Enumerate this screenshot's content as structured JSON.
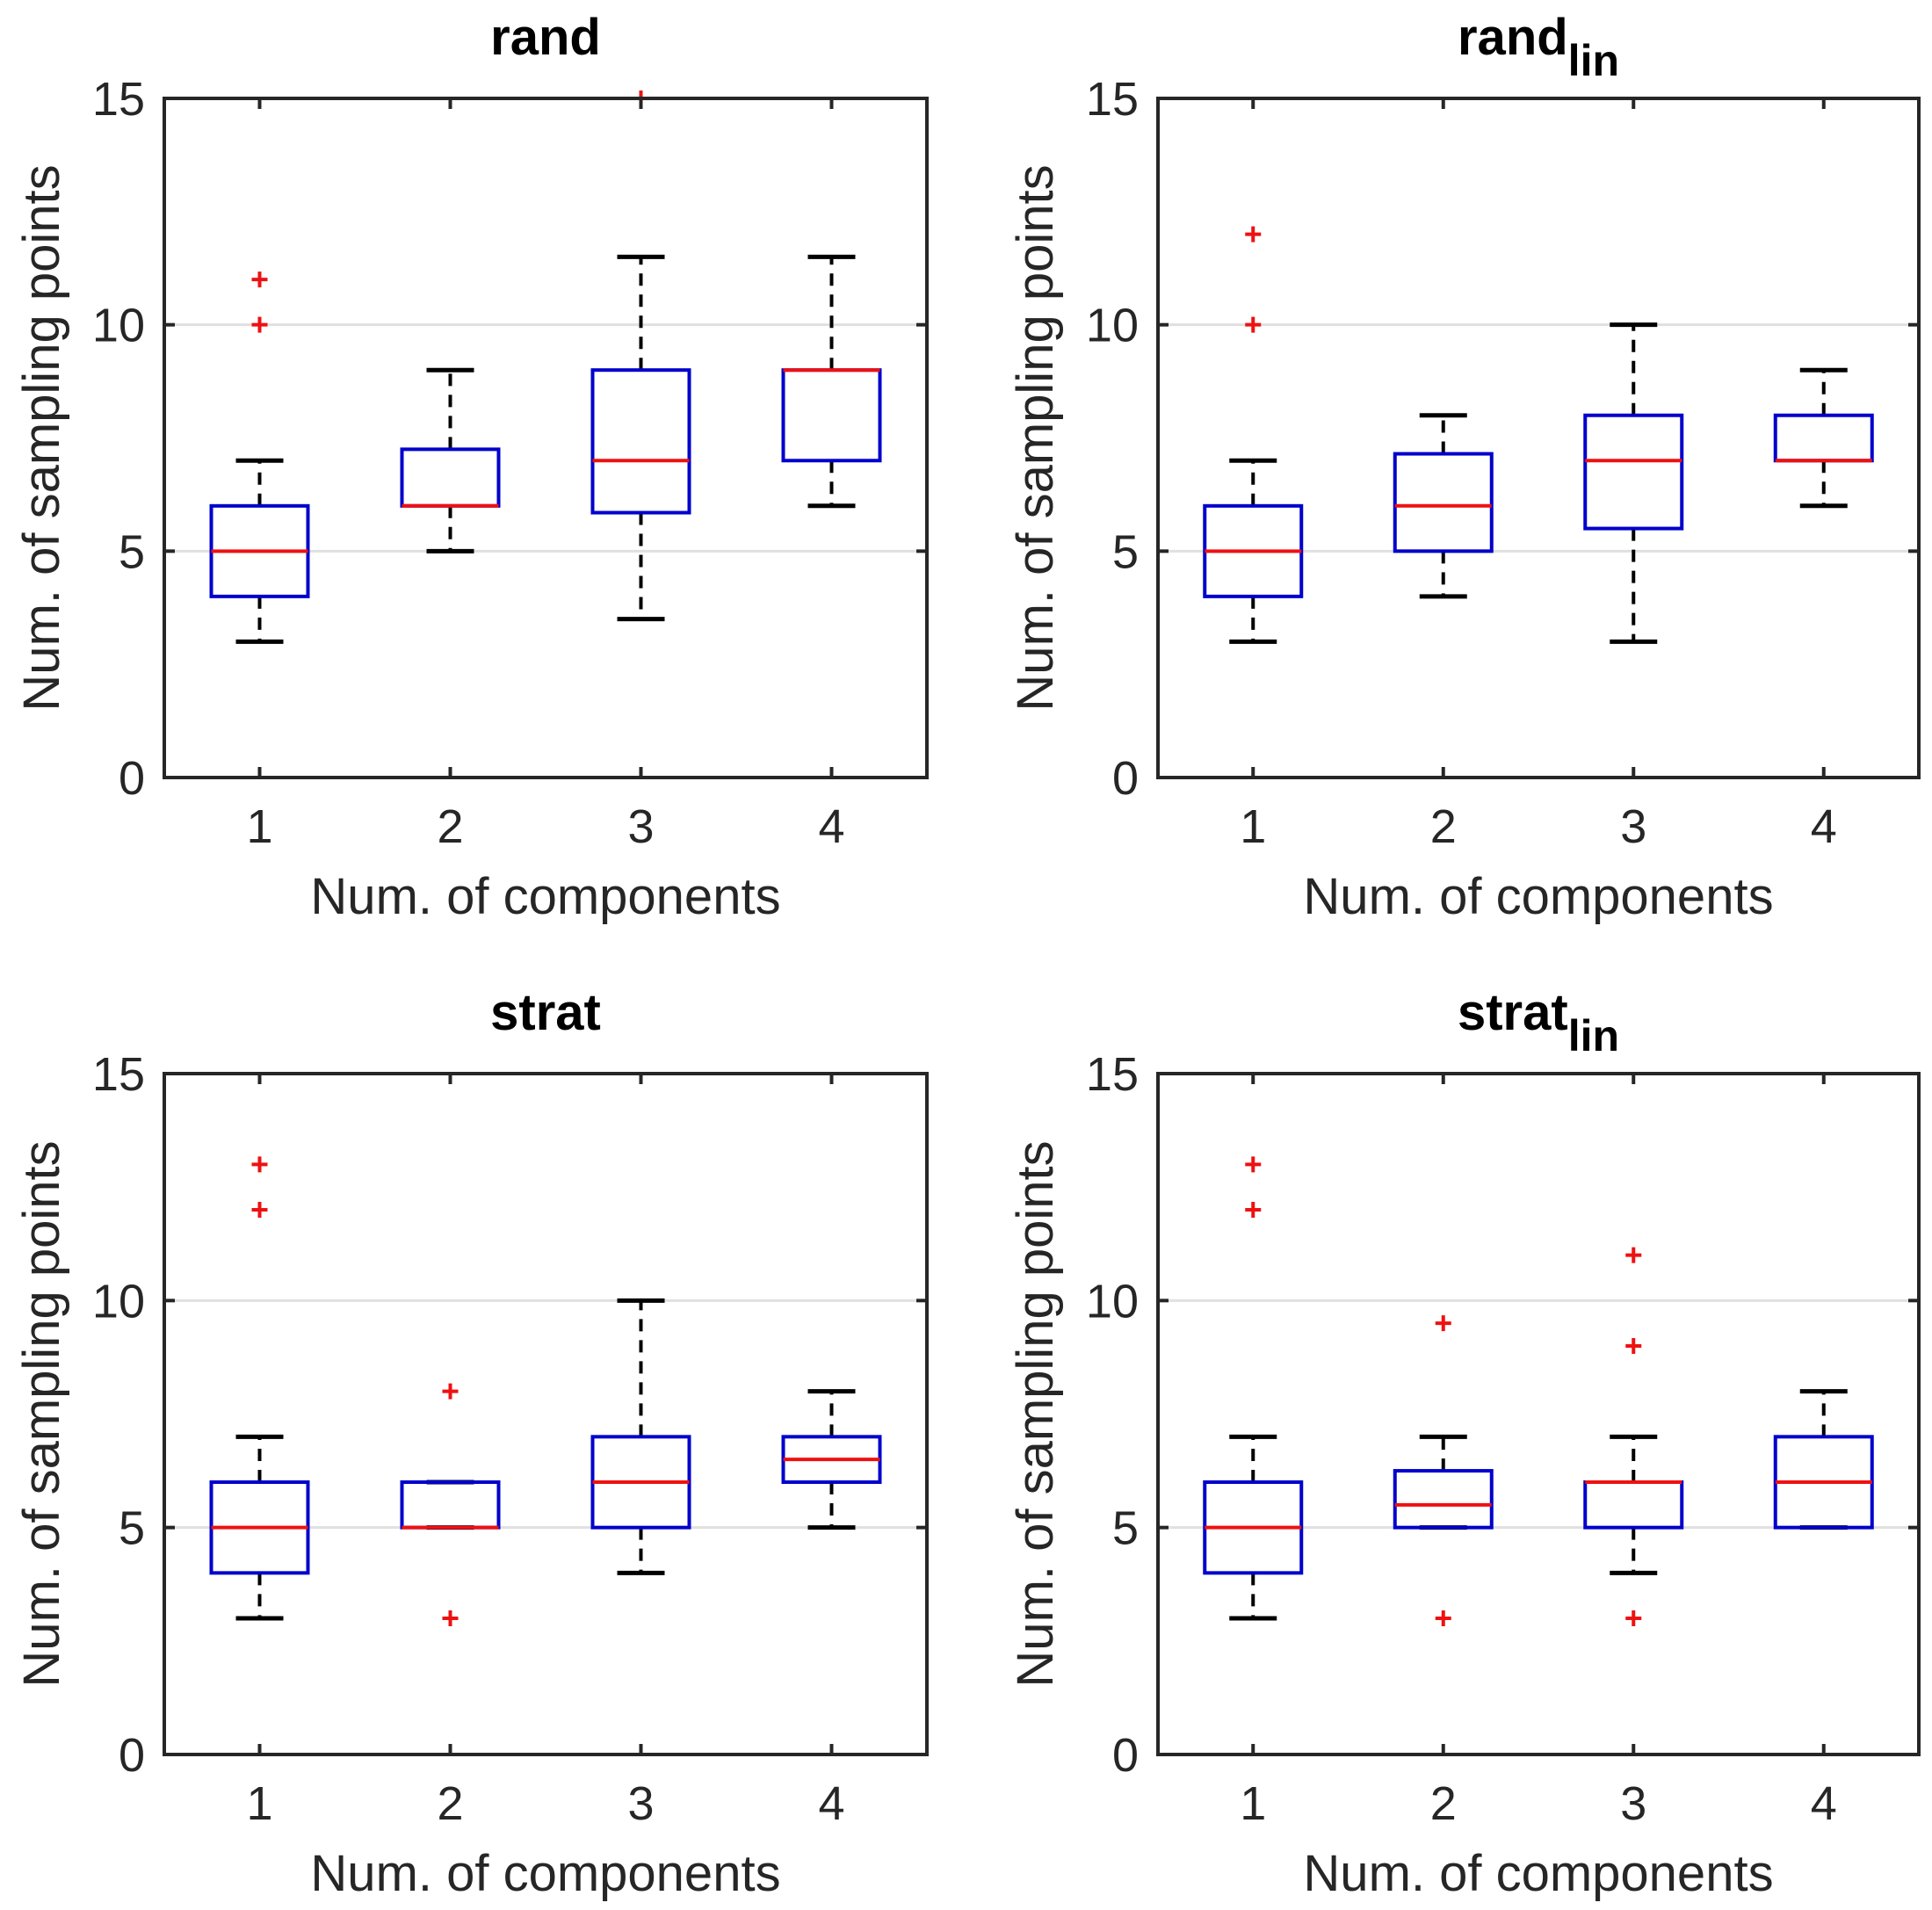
{
  "figure": {
    "panel_count": 4
  },
  "chart_data": [
    {
      "type": "boxplot",
      "title": "rand",
      "title_base": "rand",
      "title_sub": "",
      "xlabel": "Num. of components",
      "ylabel": "Num. of sampling points",
      "categories": [
        "1",
        "2",
        "3",
        "4"
      ],
      "ylim": [
        0,
        15
      ],
      "yticks": [
        0,
        5,
        10,
        15
      ],
      "grid": "horizontal at 5 and 10",
      "boxes": [
        {
          "category": "1",
          "whisker_low": 3,
          "q1": 4,
          "median": 5,
          "q3": 6,
          "whisker_high": 7,
          "outliers": [
            10,
            11
          ]
        },
        {
          "category": "2",
          "whisker_low": 5,
          "q1": 6,
          "median": 6,
          "q3": 7.25,
          "whisker_high": 9,
          "outliers": []
        },
        {
          "category": "3",
          "whisker_low": 3.5,
          "q1": 5.85,
          "median": 7,
          "q3": 9,
          "whisker_high": 11.5,
          "outliers": [
            15
          ]
        },
        {
          "category": "4",
          "whisker_low": 6,
          "q1": 7,
          "median": 9,
          "q3": 9,
          "whisker_high": 11.5,
          "outliers": []
        }
      ]
    },
    {
      "type": "boxplot",
      "title": "rand_lin",
      "title_base": "rand",
      "title_sub": "lin",
      "xlabel": "Num. of components",
      "ylabel": "Num. of sampling points",
      "categories": [
        "1",
        "2",
        "3",
        "4"
      ],
      "ylim": [
        0,
        15
      ],
      "yticks": [
        0,
        5,
        10,
        15
      ],
      "grid": "horizontal at 5 and 10",
      "boxes": [
        {
          "category": "1",
          "whisker_low": 3,
          "q1": 4,
          "median": 5,
          "q3": 6,
          "whisker_high": 7,
          "outliers": [
            10,
            12
          ]
        },
        {
          "category": "2",
          "whisker_low": 4,
          "q1": 5,
          "median": 6,
          "q3": 7.15,
          "whisker_high": 8,
          "outliers": []
        },
        {
          "category": "3",
          "whisker_low": 3,
          "q1": 5.5,
          "median": 7,
          "q3": 8,
          "whisker_high": 10,
          "outliers": []
        },
        {
          "category": "4",
          "whisker_low": 6,
          "q1": 7,
          "median": 7,
          "q3": 8,
          "whisker_high": 9,
          "outliers": []
        }
      ]
    },
    {
      "type": "boxplot",
      "title": "strat",
      "title_base": "strat",
      "title_sub": "",
      "xlabel": "Num. of components",
      "ylabel": "Num. of sampling points",
      "categories": [
        "1",
        "2",
        "3",
        "4"
      ],
      "ylim": [
        0,
        15
      ],
      "yticks": [
        0,
        5,
        10,
        15
      ],
      "grid": "horizontal at 5 and 10",
      "boxes": [
        {
          "category": "1",
          "whisker_low": 3,
          "q1": 4,
          "median": 5,
          "q3": 6,
          "whisker_high": 7,
          "outliers": [
            12,
            13
          ]
        },
        {
          "category": "2",
          "whisker_low": 5,
          "q1": 5,
          "median": 5,
          "q3": 6,
          "whisker_high": 6,
          "outliers": [
            3,
            8
          ]
        },
        {
          "category": "3",
          "whisker_low": 4,
          "q1": 5,
          "median": 6,
          "q3": 7,
          "whisker_high": 10,
          "outliers": []
        },
        {
          "category": "4",
          "whisker_low": 5,
          "q1": 6,
          "median": 6.5,
          "q3": 7,
          "whisker_high": 8,
          "outliers": []
        }
      ]
    },
    {
      "type": "boxplot",
      "title": "strat_lin",
      "title_base": "strat",
      "title_sub": "lin",
      "xlabel": "Num. of components",
      "ylabel": "Num. of sampling points",
      "categories": [
        "1",
        "2",
        "3",
        "4"
      ],
      "ylim": [
        0,
        15
      ],
      "yticks": [
        0,
        5,
        10,
        15
      ],
      "grid": "horizontal at 5 and 10",
      "boxes": [
        {
          "category": "1",
          "whisker_low": 3,
          "q1": 4,
          "median": 5,
          "q3": 6,
          "whisker_high": 7,
          "outliers": [
            12,
            13
          ]
        },
        {
          "category": "2",
          "whisker_low": 5,
          "q1": 5,
          "median": 5.5,
          "q3": 6.25,
          "whisker_high": 7,
          "outliers": [
            3,
            9.5
          ]
        },
        {
          "category": "3",
          "whisker_low": 4,
          "q1": 5,
          "median": 6,
          "q3": 6,
          "whisker_high": 7,
          "outliers": [
            3,
            9,
            11
          ]
        },
        {
          "category": "4",
          "whisker_low": 5,
          "q1": 5,
          "median": 6,
          "q3": 7,
          "whisker_high": 8,
          "outliers": []
        }
      ]
    }
  ],
  "colors": {
    "box": "#0000cc",
    "median": "#ee1111",
    "whisker": "#000000",
    "outlier": "#ee1111",
    "grid": "#e0e0e0",
    "axis": "#262626"
  }
}
